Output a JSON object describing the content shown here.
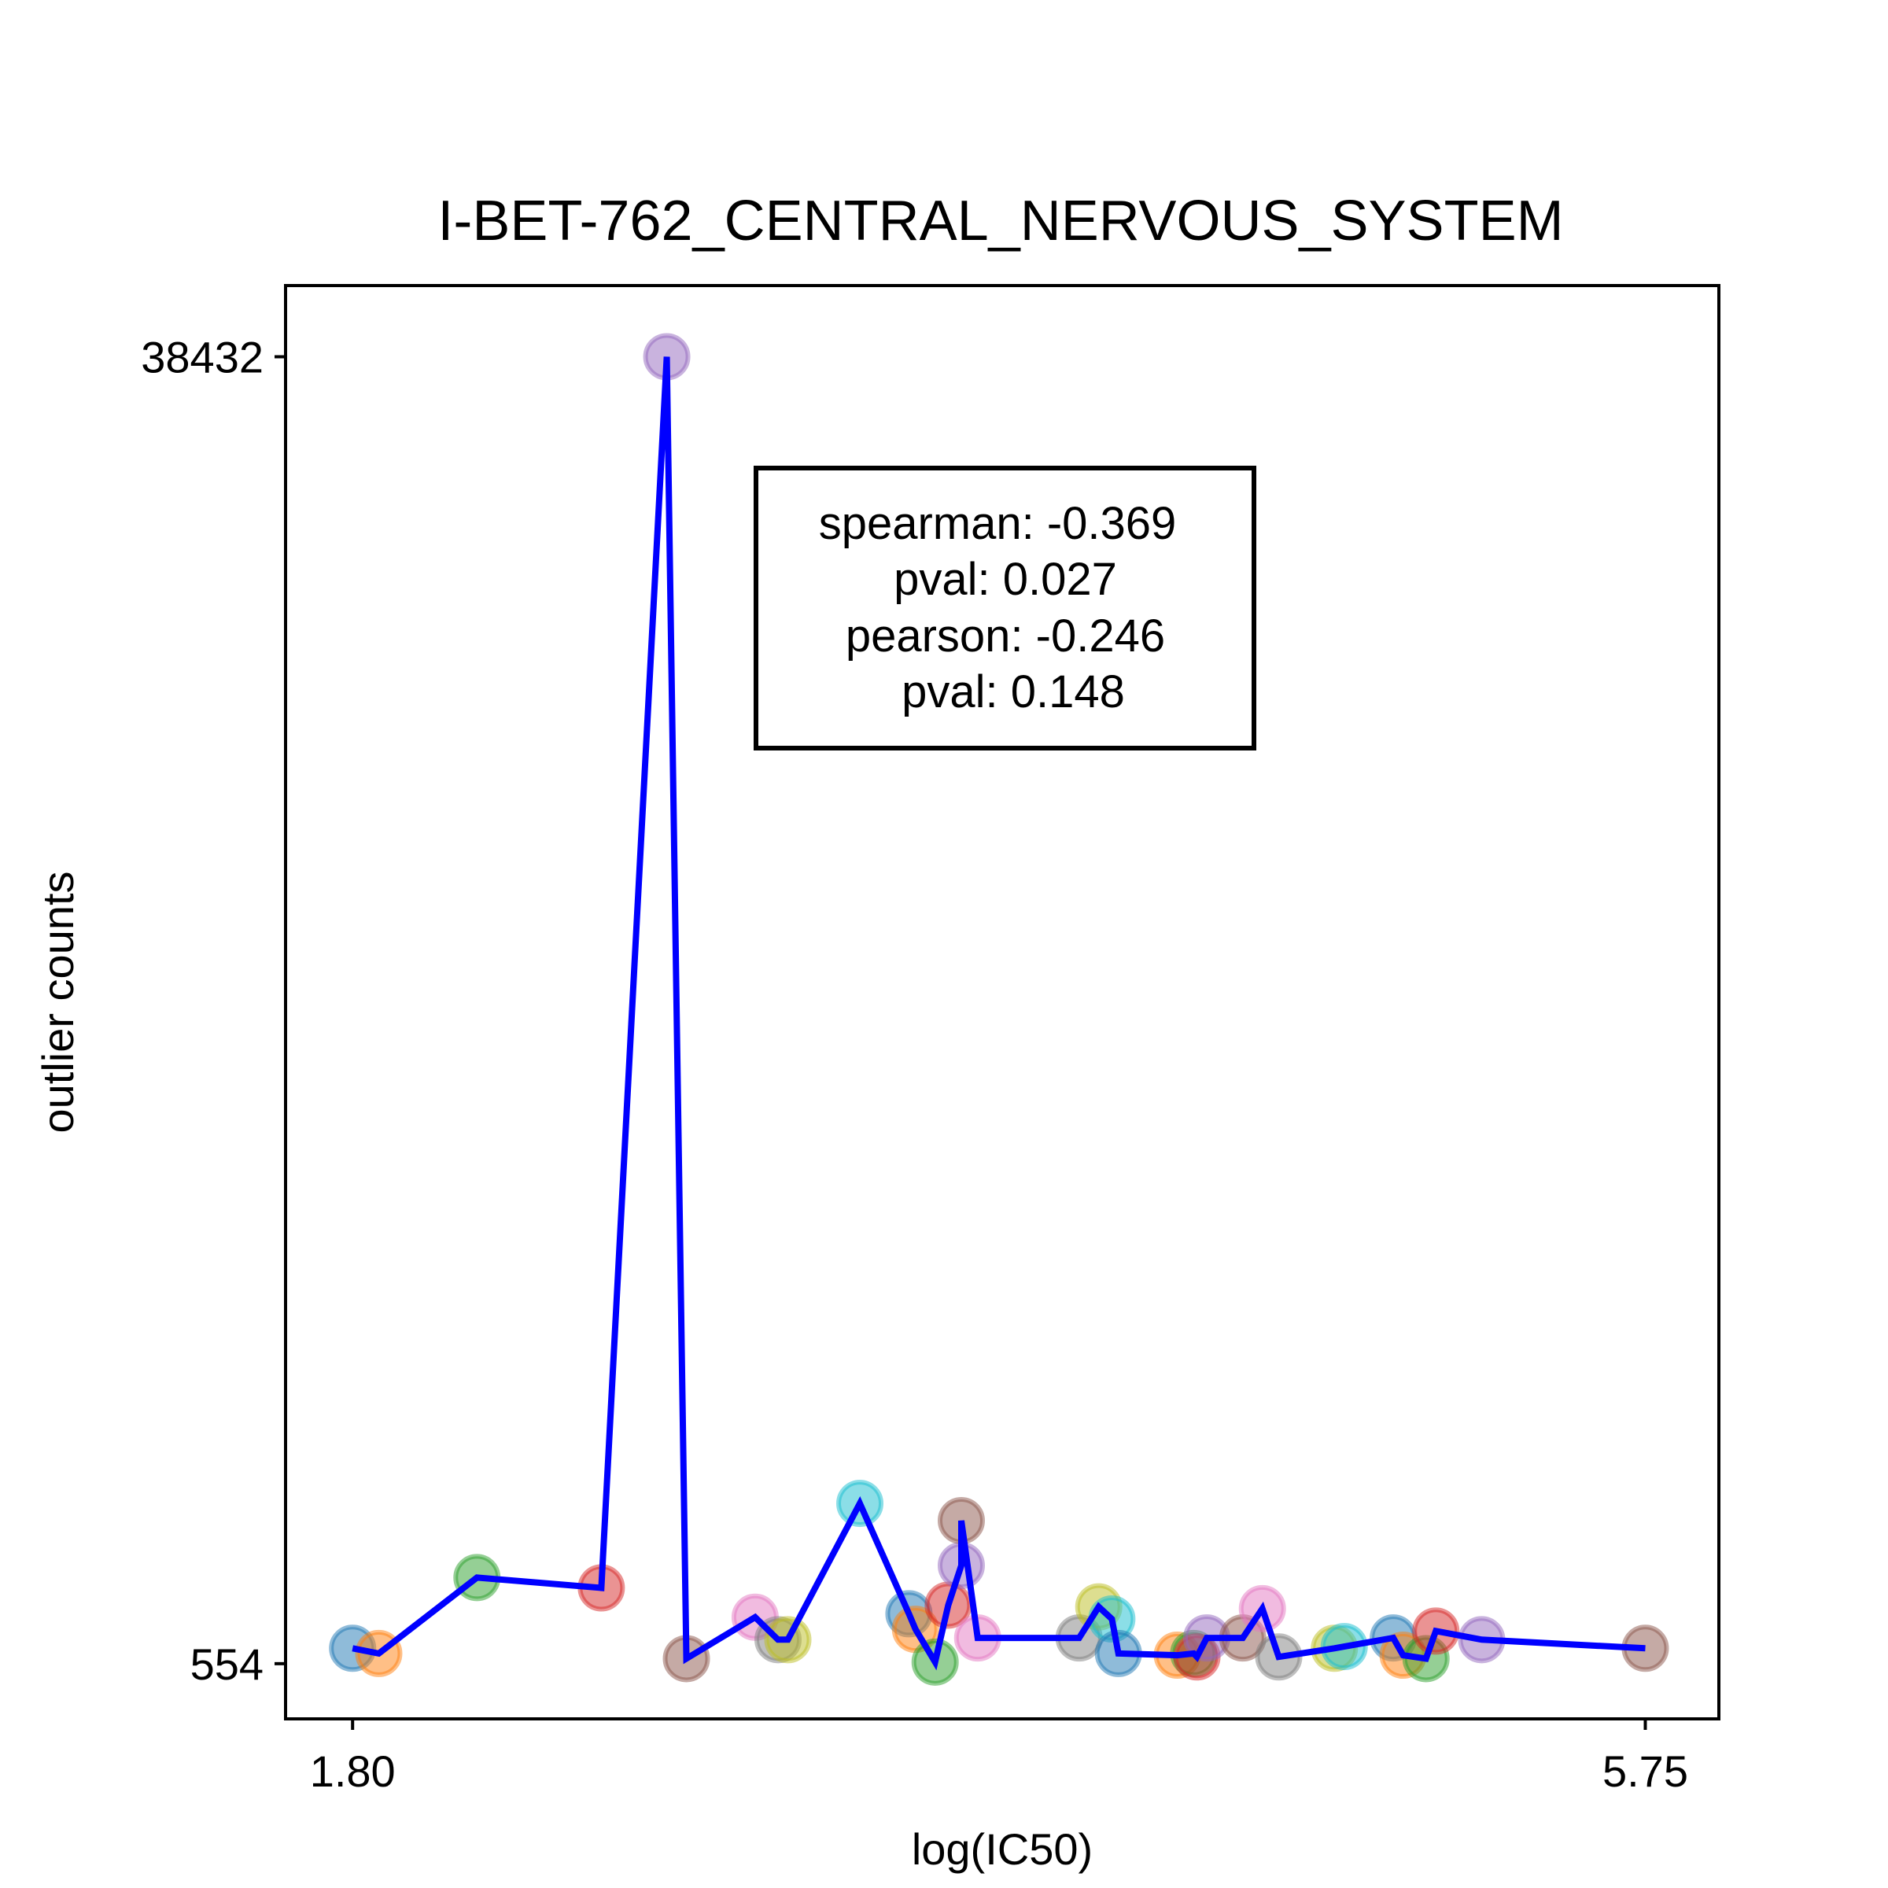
{
  "chart_data": {
    "type": "scatter",
    "title": "I-BET-762_CENTRAL_NERVOUS_SYSTEM",
    "xlabel": "log(IC50)",
    "ylabel": "outlier counts",
    "xlim": [
      1.6,
      5.97
    ],
    "ylim": [
      -1000,
      40450
    ],
    "xticks": [
      1.8,
      5.75
    ],
    "xtick_labels": [
      "1.80",
      "5.75"
    ],
    "yticks": [
      554,
      38432
    ],
    "ytick_labels": [
      "554",
      "38432"
    ],
    "grid": false,
    "legend": "none",
    "annotation": [
      "spearman: -0.369",
      "pval: 0.027",
      "pearson: -0.246",
      "pval: 0.148"
    ],
    "line_color": "#0000ff",
    "points": [
      {
        "x": 1.8,
        "y": 1000,
        "color": "#1f77b4"
      },
      {
        "x": 1.88,
        "y": 850,
        "color": "#ff7f0e"
      },
      {
        "x": 2.18,
        "y": 3050,
        "color": "#2ca02c"
      },
      {
        "x": 2.56,
        "y": 2750,
        "color": "#d62728"
      },
      {
        "x": 2.76,
        "y": 38432,
        "color": "#9467bd"
      },
      {
        "x": 2.82,
        "y": 700,
        "color": "#8c564b"
      },
      {
        "x": 3.03,
        "y": 1900,
        "color": "#e377c2"
      },
      {
        "x": 3.1,
        "y": 1250,
        "color": "#7f7f7f"
      },
      {
        "x": 3.13,
        "y": 1250,
        "color": "#bcbd22"
      },
      {
        "x": 3.35,
        "y": 5200,
        "color": "#17becf"
      },
      {
        "x": 3.5,
        "y": 2000,
        "color": "#1f77b4"
      },
      {
        "x": 3.52,
        "y": 1550,
        "color": "#ff7f0e"
      },
      {
        "x": 3.58,
        "y": 600,
        "color": "#2ca02c"
      },
      {
        "x": 3.62,
        "y": 2250,
        "color": "#d62728"
      },
      {
        "x": 3.66,
        "y": 3400,
        "color": "#9467bd"
      },
      {
        "x": 3.66,
        "y": 4700,
        "color": "#8c564b"
      },
      {
        "x": 3.71,
        "y": 1300,
        "color": "#e377c2"
      },
      {
        "x": 4.02,
        "y": 1300,
        "color": "#7f7f7f"
      },
      {
        "x": 4.08,
        "y": 2200,
        "color": "#bcbd22"
      },
      {
        "x": 4.12,
        "y": 1850,
        "color": "#17becf"
      },
      {
        "x": 4.14,
        "y": 850,
        "color": "#1f77b4"
      },
      {
        "x": 4.32,
        "y": 800,
        "color": "#ff7f0e"
      },
      {
        "x": 4.37,
        "y": 850,
        "color": "#2ca02c"
      },
      {
        "x": 4.38,
        "y": 750,
        "color": "#d62728"
      },
      {
        "x": 4.41,
        "y": 1300,
        "color": "#9467bd"
      },
      {
        "x": 4.52,
        "y": 1300,
        "color": "#8c564b"
      },
      {
        "x": 4.58,
        "y": 2150,
        "color": "#e377c2"
      },
      {
        "x": 4.63,
        "y": 750,
        "color": "#7f7f7f"
      },
      {
        "x": 4.8,
        "y": 1000,
        "color": "#bcbd22"
      },
      {
        "x": 4.83,
        "y": 1050,
        "color": "#17becf"
      },
      {
        "x": 4.98,
        "y": 1300,
        "color": "#1f77b4"
      },
      {
        "x": 5.01,
        "y": 800,
        "color": "#ff7f0e"
      },
      {
        "x": 5.08,
        "y": 700,
        "color": "#2ca02c"
      },
      {
        "x": 5.11,
        "y": 1500,
        "color": "#d62728"
      },
      {
        "x": 5.25,
        "y": 1250,
        "color": "#9467bd"
      },
      {
        "x": 5.75,
        "y": 1000,
        "color": "#8c564b"
      }
    ]
  }
}
